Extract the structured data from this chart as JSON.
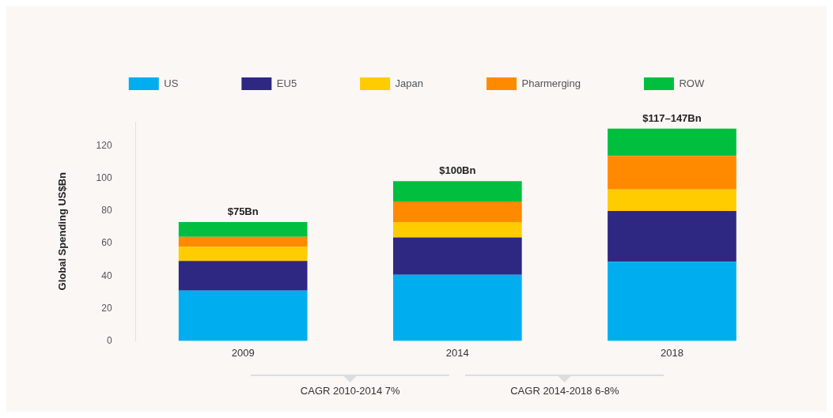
{
  "chart_data": {
    "type": "bar",
    "stacked": true,
    "ylabel": "Global Spending US$Bn",
    "categories": [
      "2009",
      "2014",
      "2018"
    ],
    "series": [
      {
        "name": "US",
        "color": "#00aeef",
        "values": [
          31,
          40.7,
          48.7
        ]
      },
      {
        "name": "EU5",
        "color": "#2e2882",
        "values": [
          18.2,
          23,
          31.3
        ]
      },
      {
        "name": "Japan",
        "color": "#ffcc00",
        "values": [
          8.7,
          9.5,
          13.3
        ]
      },
      {
        "name": "Pharmerging",
        "color": "#ff8a00",
        "values": [
          6.2,
          12.7,
          20.6
        ]
      },
      {
        "name": "ROW",
        "color": "#00bf3f",
        "values": [
          9.1,
          12.5,
          16.8
        ]
      }
    ],
    "totals": [
      "$75Bn",
      "$100Bn",
      "$117–147Bn"
    ],
    "ylim": [
      0,
      135
    ],
    "yticks": [
      0,
      20,
      40,
      60,
      80,
      100,
      120
    ],
    "grid": false,
    "legend": "top",
    "annotations": [
      "CAGR 2010-2014 7%",
      "CAGR 2014-2018 6-8%"
    ]
  }
}
